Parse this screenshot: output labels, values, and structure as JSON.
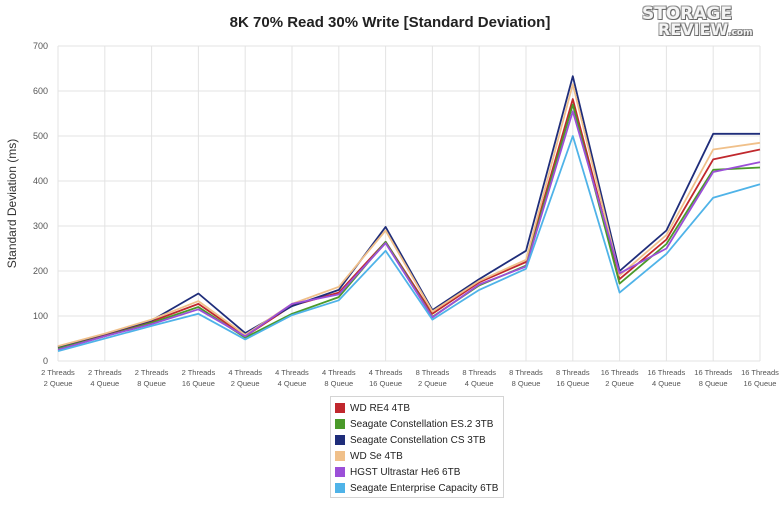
{
  "chart_data": {
    "type": "line",
    "title": "8K 70% Read 30% Write [Standard Deviation]",
    "ylabel": "Standard Deviation (ms)",
    "xlabel": "",
    "ylim": [
      0,
      700
    ],
    "yticks": [
      0,
      100,
      200,
      300,
      400,
      500,
      600,
      700
    ],
    "grid": true,
    "legend": "bottom-center",
    "categories": [
      [
        "2 Threads",
        "2 Queue"
      ],
      [
        "2 Threads",
        "4 Queue"
      ],
      [
        "2 Threads",
        "8 Queue"
      ],
      [
        "2 Threads",
        "16 Queue"
      ],
      [
        "4 Threads",
        "2 Queue"
      ],
      [
        "4 Threads",
        "4 Queue"
      ],
      [
        "4 Threads",
        "8 Queue"
      ],
      [
        "4 Threads",
        "16 Queue"
      ],
      [
        "8 Threads",
        "2 Queue"
      ],
      [
        "8 Threads",
        "4 Queue"
      ],
      [
        "8 Threads",
        "8 Queue"
      ],
      [
        "8 Threads",
        "16 Queue"
      ],
      [
        "16 Threads",
        "2 Queue"
      ],
      [
        "16 Threads",
        "4 Queue"
      ],
      [
        "16 Threads",
        "8 Queue"
      ],
      [
        "16 Threads",
        "16 Queue"
      ]
    ],
    "series": [
      {
        "name": "WD RE4 4TB",
        "color": "#c0282d",
        "values": [
          30,
          58,
          88,
          127,
          55,
          123,
          152,
          265,
          105,
          175,
          220,
          582,
          182,
          270,
          448,
          470
        ]
      },
      {
        "name": "Seagate Constellation ES.2 3TB",
        "color": "#4a9a2a",
        "values": [
          28,
          55,
          85,
          120,
          52,
          105,
          142,
          265,
          98,
          168,
          212,
          570,
          172,
          260,
          425,
          430
        ]
      },
      {
        "name": "Seagate Constellation CS 3TB",
        "color": "#1f2d7a",
        "values": [
          32,
          60,
          90,
          150,
          62,
          122,
          158,
          298,
          113,
          182,
          245,
          633,
          200,
          290,
          505,
          505
        ]
      },
      {
        "name": "WD Se 4TB",
        "color": "#f0c08a",
        "values": [
          33,
          61,
          92,
          133,
          58,
          127,
          165,
          290,
          110,
          178,
          225,
          615,
          190,
          280,
          470,
          485
        ]
      },
      {
        "name": "HGST Ultrastar He6 6TB",
        "color": "#9b4fd8",
        "values": [
          25,
          55,
          82,
          115,
          55,
          127,
          148,
          262,
          97,
          170,
          210,
          555,
          195,
          250,
          420,
          442
        ]
      },
      {
        "name": "Seagate Enterprise Capacity 6TB",
        "color": "#4fb3e8",
        "values": [
          22,
          50,
          78,
          105,
          48,
          102,
          135,
          245,
          92,
          158,
          205,
          500,
          152,
          238,
          363,
          393
        ]
      }
    ]
  },
  "logo": {
    "line1": "STORAGE",
    "line2": "REVIEW",
    "suffix": ".com"
  }
}
